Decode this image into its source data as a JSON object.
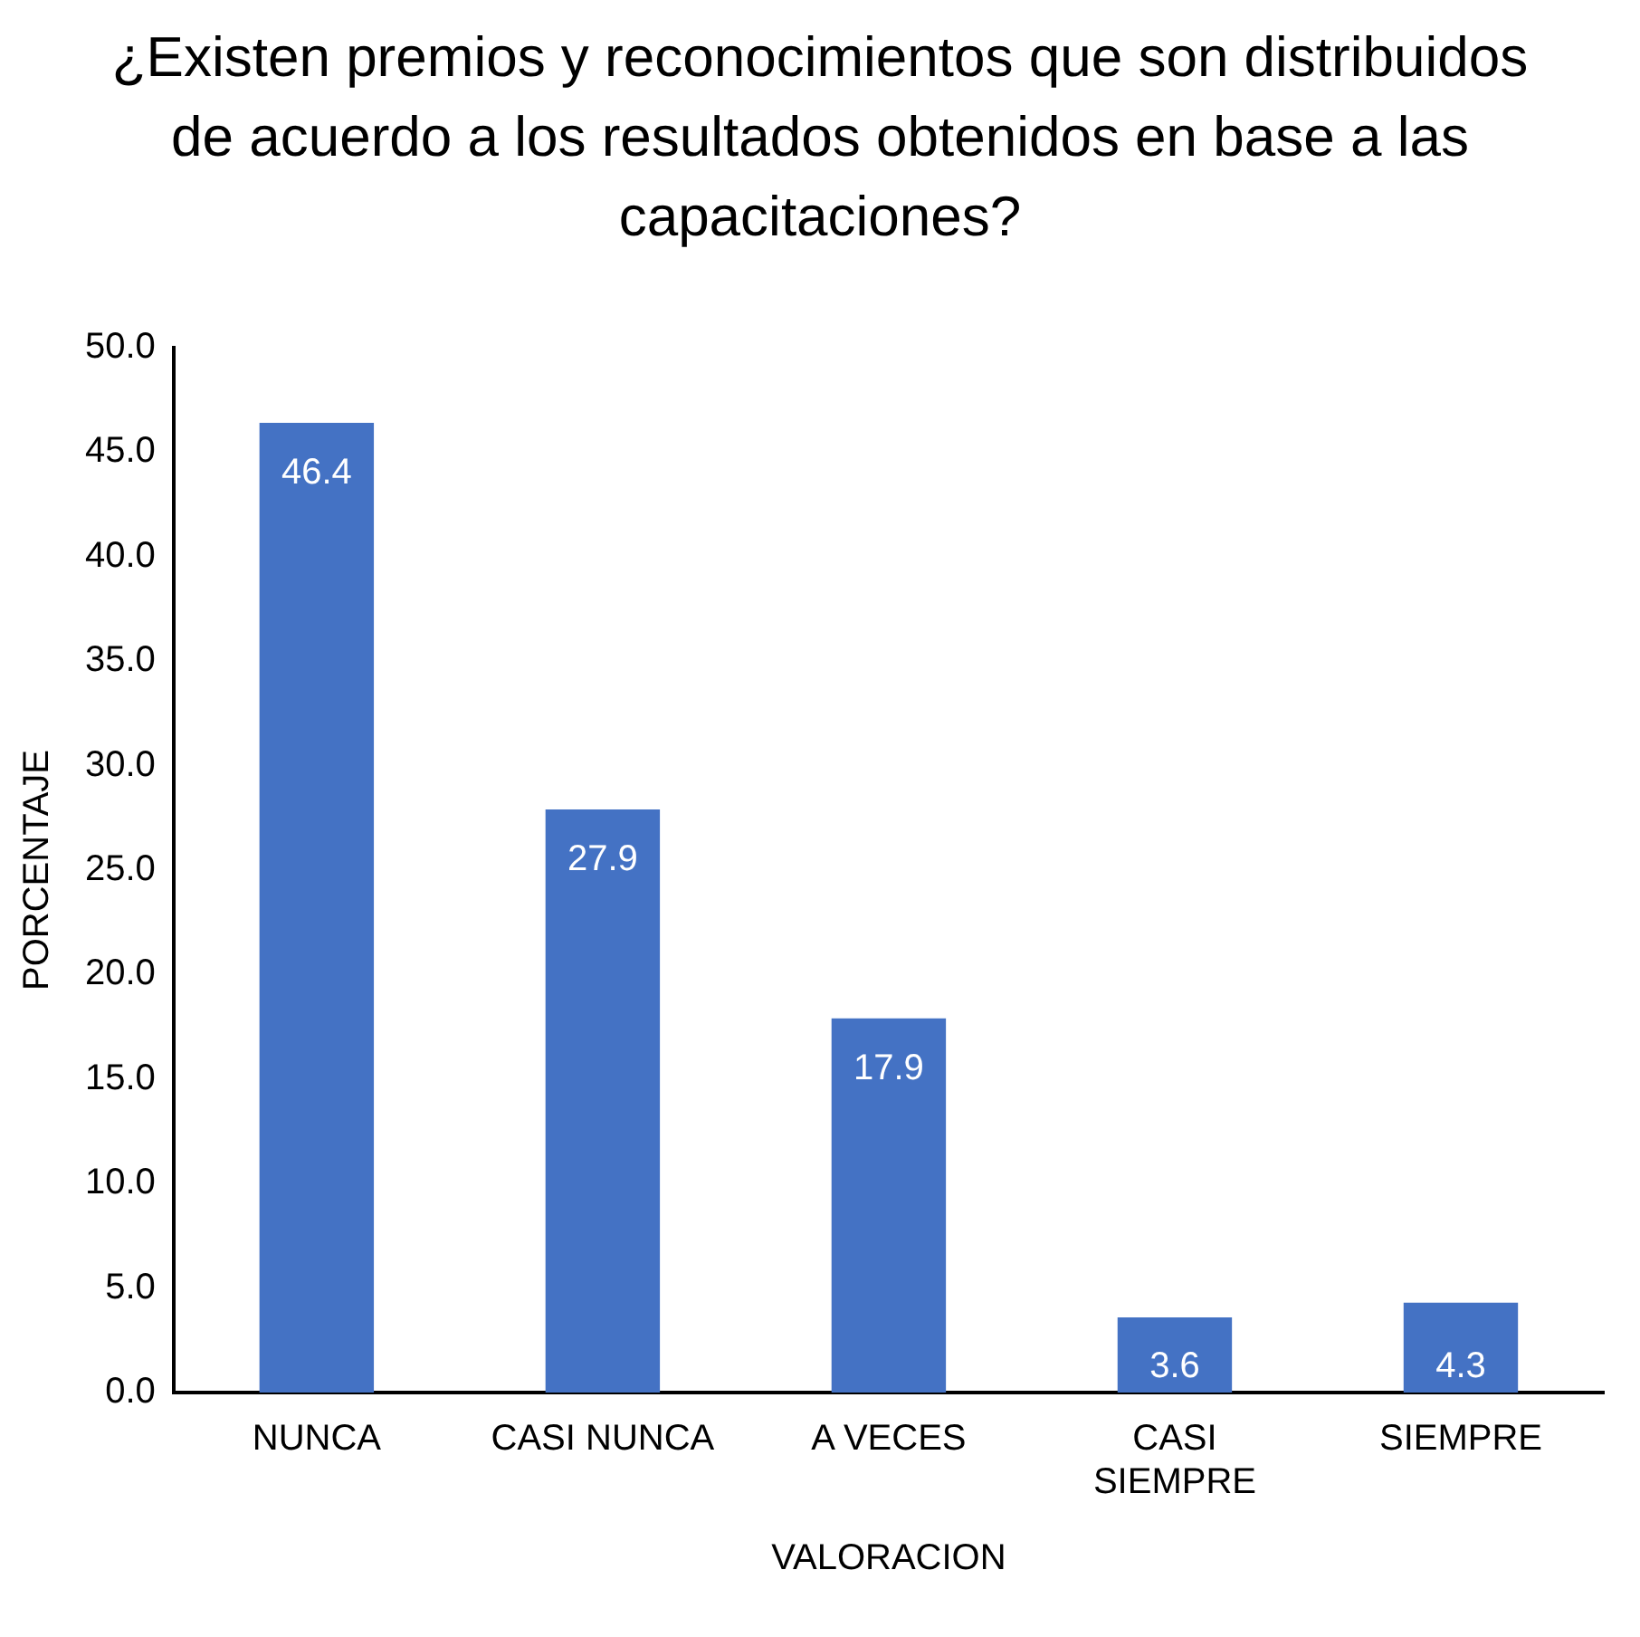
{
  "chart_data": {
    "type": "bar",
    "title": "¿Existen premios y reconocimientos que son distribuidos de acuerdo a los resultados obtenidos en base a las capacitaciones?",
    "xlabel": "VALORACION",
    "ylabel": "PORCENTAJE",
    "categories": [
      "NUNCA",
      "CASI NUNCA",
      "A VECES",
      "CASI SIEMPRE",
      "SIEMPRE"
    ],
    "values": [
      46.4,
      27.9,
      17.9,
      3.6,
      4.3
    ],
    "color": "#4472c4",
    "ylim": [
      0,
      50
    ],
    "yticks": [
      {
        "value": 0,
        "label": "0.0"
      },
      {
        "value": 5,
        "label": "5.0"
      },
      {
        "value": 10,
        "label": "10.0"
      },
      {
        "value": 15,
        "label": "15.0"
      },
      {
        "value": 20,
        "label": "20.0"
      },
      {
        "value": 25,
        "label": "25.0"
      },
      {
        "value": 30,
        "label": "30.0"
      },
      {
        "value": 35,
        "label": "35.0"
      },
      {
        "value": 40,
        "label": "40.0"
      },
      {
        "value": 45,
        "label": "45.0"
      },
      {
        "value": 50,
        "label": "50.0"
      }
    ],
    "grid": false,
    "data_labels": true
  }
}
